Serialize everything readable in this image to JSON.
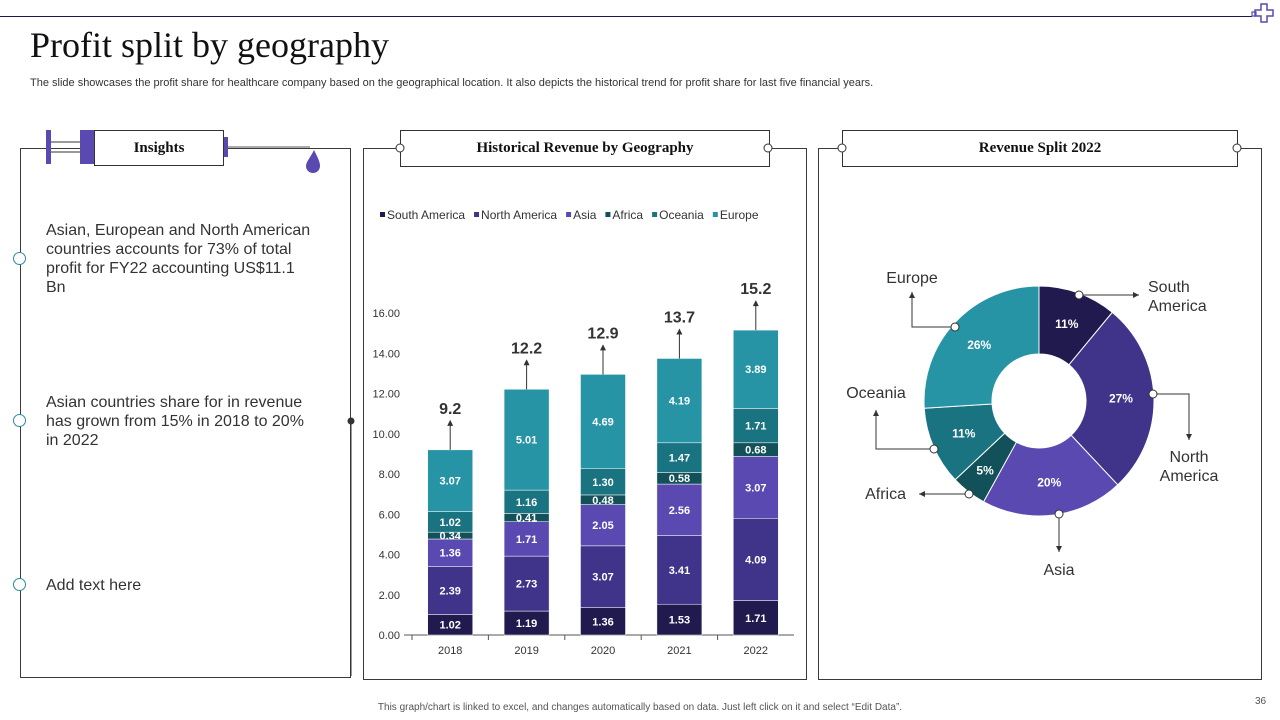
{
  "page": {
    "title": "Profit split by geography",
    "subtitle": "The slide showcases the profit share for healthcare company based on the geographical location. It also depicts the historical trend for profit share for last five financial years.",
    "footer": "This graph/chart is linked to excel, and changes automatically based on data. Just left click on it and select “Edit Data”.",
    "page_number": "36"
  },
  "insights": {
    "heading": "Insights",
    "items": [
      "Asian, European and North American countries accounts for 73% of total profit for FY22 accounting US$11.1 Bn",
      "Asian countries share for in revenue has grown from 15% in 2018 to 20% in 2022",
      "Add text here"
    ]
  },
  "bar_panel": {
    "heading": "Historical  Revenue by Geography"
  },
  "pie_panel": {
    "heading": "Revenue Split  2022"
  },
  "colors": {
    "South America": "#211a4f",
    "North America": "#3f3489",
    "Asia": "#5a49b0",
    "Africa": "#12505a",
    "Oceania": "#197381",
    "Europe": "#2794a6",
    "accent": "#5a49b0",
    "teal": "#2a8c9a"
  },
  "chart_data": [
    {
      "type": "bar",
      "stacked": true,
      "title": "Historical  Revenue by Geography",
      "categories": [
        "2018",
        "2019",
        "2020",
        "2021",
        "2022"
      ],
      "series": [
        {
          "name": "South America",
          "values": [
            1.02,
            1.19,
            1.36,
            1.53,
            1.71
          ]
        },
        {
          "name": "North America",
          "values": [
            2.39,
            2.73,
            3.07,
            3.41,
            4.09
          ]
        },
        {
          "name": "Asia",
          "values": [
            1.36,
            1.71,
            2.05,
            2.56,
            3.07
          ]
        },
        {
          "name": "Africa",
          "values": [
            0.34,
            0.41,
            0.48,
            0.58,
            0.68
          ]
        },
        {
          "name": "Oceania",
          "values": [
            1.02,
            1.16,
            1.3,
            1.47,
            1.71
          ]
        },
        {
          "name": "Europe",
          "values": [
            3.07,
            5.01,
            4.69,
            4.19,
            3.89
          ]
        }
      ],
      "value_labels": [
        [
          "1.02",
          "1.19",
          "1.36",
          "1.53",
          "1.71"
        ],
        [
          "2.39",
          "2.73",
          "3.07",
          "3.41",
          "4.09"
        ],
        [
          "1.36",
          "1.71",
          "2.05",
          "2.56",
          "3.07"
        ],
        [
          "0.34",
          "0.41",
          "0.48",
          "0.58",
          "0.68"
        ],
        [
          "1.02",
          "1.16",
          "1.30",
          "1.47",
          "1.71"
        ],
        [
          "3.07",
          "5.01",
          "4.69",
          "4.19",
          "3.89"
        ]
      ],
      "totals": [
        9.2,
        12.2,
        12.9,
        13.7,
        15.2
      ],
      "total_labels": [
        "9.2",
        "12.2",
        "12.9",
        "13.7",
        "15.2"
      ],
      "yticks": [
        "0.00",
        "2.00",
        "4.00",
        "6.00",
        "8.00",
        "10.00",
        "12.00",
        "14.00",
        "16.00"
      ],
      "ylim": [
        0,
        16
      ],
      "legend": "top"
    },
    {
      "type": "pie",
      "donut": true,
      "title": "Revenue Split  2022",
      "slices": [
        {
          "name": "South America",
          "label": "South America",
          "value": 11,
          "pct": "11%"
        },
        {
          "name": "North America",
          "label": "North America",
          "value": 27,
          "pct": "27%"
        },
        {
          "name": "Asia",
          "label": "Asia",
          "value": 20,
          "pct": "20%"
        },
        {
          "name": "Africa",
          "label": "Africa",
          "value": 5,
          "pct": "5%"
        },
        {
          "name": "Oceania",
          "label": "Oceania",
          "value": 11,
          "pct": "11%"
        },
        {
          "name": "Europe",
          "label": "Europe",
          "value": 26,
          "pct": "26%"
        }
      ]
    }
  ]
}
